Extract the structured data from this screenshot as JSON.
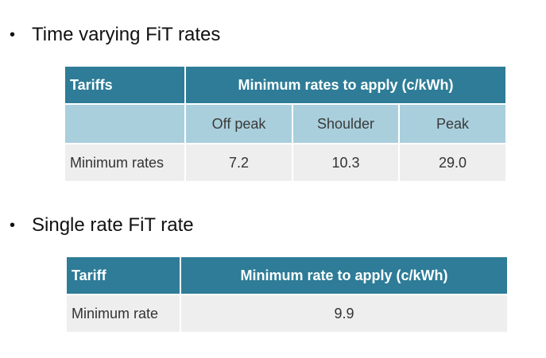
{
  "section1": {
    "bullet": "•",
    "heading": "Time varying FiT rates",
    "table": {
      "header_left": "Tariffs",
      "header_right": "Minimum rates to apply (c/kWh)",
      "columns": [
        "Off peak",
        "Shoulder",
        "Peak"
      ],
      "row_label": "Minimum rates",
      "values": [
        "7.2",
        "10.3",
        "29.0"
      ]
    }
  },
  "section2": {
    "bullet": "•",
    "heading": "Single rate FiT rate",
    "table": {
      "header_left": "Tariff",
      "header_right": "Minimum rate to apply (c/kWh)",
      "row_label": "Minimum rate",
      "value": "9.9"
    }
  },
  "colors": {
    "header_bg": "#2e7c97",
    "subheader_bg": "#a9cfdc",
    "row_bg": "#eeeeee"
  }
}
